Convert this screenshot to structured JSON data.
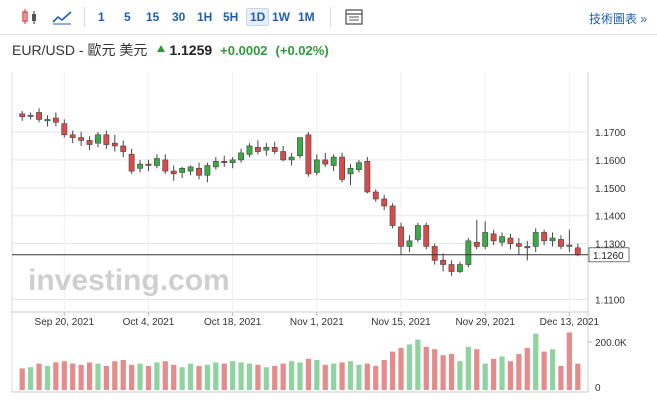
{
  "toolbar": {
    "icons": [
      "candlestick-icon",
      "line-chart-icon",
      "calendar-icon"
    ],
    "timeframes": [
      "1",
      "5",
      "15",
      "30",
      "1H",
      "5H",
      "1D",
      "1W",
      "1M"
    ],
    "active_timeframe": "1D",
    "tech_link": "技術圖表 »"
  },
  "header": {
    "symbol": "EUR/USD - 歐元 美元",
    "last": "1.1259",
    "change": "+0.0002",
    "change_pct": "(+0.02%)"
  },
  "colors": {
    "up": "#3aaa47",
    "down": "#d94b4b",
    "vol_up": "#8fd4a0",
    "vol_down": "#e58b8b",
    "grid": "#e6e6e6",
    "link": "#1f5fae"
  },
  "chart_data": {
    "type": "candlestick",
    "y_ticks": [
      "1.1700",
      "1.1600",
      "1.1500",
      "1.1400",
      "1.1300",
      "1.1100"
    ],
    "ylim": [
      1.1055,
      1.1915
    ],
    "last_price_label": "1.1260",
    "last_price": 1.126,
    "x_tick_labels": [
      "Sep 20, 2021",
      "Oct 4, 2021",
      "Oct 18, 2021",
      "Nov 1, 2021",
      "Nov 15, 2021",
      "Nov 29, 2021",
      "Dec 13, 2021"
    ],
    "x_tick_index": [
      5,
      15,
      25,
      35,
      45,
      55,
      65
    ],
    "candles": [
      [
        1.1765,
        1.1775,
        1.174,
        1.1755
      ],
      [
        1.176,
        1.177,
        1.1745,
        1.176
      ],
      [
        1.177,
        1.1785,
        1.1735,
        1.1745
      ],
      [
        1.174,
        1.176,
        1.172,
        1.1745
      ],
      [
        1.175,
        1.177,
        1.172,
        1.1735
      ],
      [
        1.173,
        1.1745,
        1.168,
        1.169
      ],
      [
        1.169,
        1.1705,
        1.166,
        1.168
      ],
      [
        1.168,
        1.17,
        1.165,
        1.167
      ],
      [
        1.167,
        1.1685,
        1.1635,
        1.1655
      ],
      [
        1.166,
        1.17,
        1.1645,
        1.169
      ],
      [
        1.169,
        1.1705,
        1.164,
        1.1655
      ],
      [
        1.166,
        1.169,
        1.163,
        1.165
      ],
      [
        1.165,
        1.167,
        1.161,
        1.163
      ],
      [
        1.162,
        1.164,
        1.155,
        1.156
      ],
      [
        1.157,
        1.16,
        1.1555,
        1.1585
      ],
      [
        1.1585,
        1.16,
        1.156,
        1.158
      ],
      [
        1.158,
        1.162,
        1.157,
        1.1605
      ],
      [
        1.16,
        1.162,
        1.155,
        1.156
      ],
      [
        1.156,
        1.158,
        1.1525,
        1.155
      ],
      [
        1.1555,
        1.1575,
        1.1535,
        1.157
      ],
      [
        1.156,
        1.158,
        1.1545,
        1.1575
      ],
      [
        1.157,
        1.159,
        1.153,
        1.1545
      ],
      [
        1.1545,
        1.159,
        1.152,
        1.158
      ],
      [
        1.1575,
        1.161,
        1.1565,
        1.1595
      ],
      [
        1.1595,
        1.1615,
        1.1575,
        1.159
      ],
      [
        1.159,
        1.161,
        1.157,
        1.16
      ],
      [
        1.16,
        1.164,
        1.159,
        1.1625
      ],
      [
        1.162,
        1.166,
        1.161,
        1.165
      ],
      [
        1.1645,
        1.167,
        1.162,
        1.163
      ],
      [
        1.1635,
        1.166,
        1.1615,
        1.1645
      ],
      [
        1.1645,
        1.1665,
        1.162,
        1.163
      ],
      [
        1.163,
        1.165,
        1.1595,
        1.16
      ],
      [
        1.16,
        1.1625,
        1.158,
        1.161
      ],
      [
        1.1615,
        1.168,
        1.1605,
        1.168
      ],
      [
        1.169,
        1.17,
        1.154,
        1.155
      ],
      [
        1.1555,
        1.162,
        1.1545,
        1.16
      ],
      [
        1.16,
        1.1625,
        1.1575,
        1.1585
      ],
      [
        1.158,
        1.162,
        1.156,
        1.161
      ],
      [
        1.161,
        1.1625,
        1.152,
        1.153
      ],
      [
        1.155,
        1.1585,
        1.151,
        1.157
      ],
      [
        1.1565,
        1.16,
        1.1555,
        1.159
      ],
      [
        1.1595,
        1.161,
        1.148,
        1.1485
      ],
      [
        1.1485,
        1.1495,
        1.145,
        1.146
      ],
      [
        1.146,
        1.1475,
        1.142,
        1.1435
      ],
      [
        1.1435,
        1.1445,
        1.1355,
        1.1365
      ],
      [
        1.136,
        1.1375,
        1.126,
        1.129
      ],
      [
        1.129,
        1.133,
        1.127,
        1.131
      ],
      [
        1.1315,
        1.1375,
        1.1305,
        1.1365
      ],
      [
        1.1365,
        1.1375,
        1.128,
        1.129
      ],
      [
        1.129,
        1.13,
        1.1225,
        1.124
      ],
      [
        1.124,
        1.1265,
        1.12,
        1.1225
      ],
      [
        1.1225,
        1.124,
        1.1185,
        1.12
      ],
      [
        1.12,
        1.1235,
        1.1195,
        1.1225
      ],
      [
        1.1225,
        1.132,
        1.1215,
        1.131
      ],
      [
        1.1305,
        1.1385,
        1.128,
        1.129
      ],
      [
        1.129,
        1.138,
        1.128,
        1.134
      ],
      [
        1.1335,
        1.135,
        1.1295,
        1.131
      ],
      [
        1.1305,
        1.134,
        1.129,
        1.1325
      ],
      [
        1.132,
        1.1335,
        1.128,
        1.13
      ],
      [
        1.13,
        1.132,
        1.126,
        1.129
      ],
      [
        1.129,
        1.131,
        1.124,
        1.1285
      ],
      [
        1.129,
        1.1355,
        1.127,
        1.134
      ],
      [
        1.134,
        1.135,
        1.1295,
        1.131
      ],
      [
        1.131,
        1.134,
        1.129,
        1.132
      ],
      [
        1.1315,
        1.133,
        1.128,
        1.129
      ],
      [
        1.1295,
        1.135,
        1.127,
        1.129
      ],
      [
        1.1285,
        1.13,
        1.1255,
        1.126
      ]
    ],
    "volume_axis_labels": [
      "200.0K",
      "0"
    ],
    "volume_max": 250000,
    "volumes": [
      90000,
      95000,
      110000,
      100000,
      115000,
      120000,
      110000,
      105000,
      115000,
      110000,
      100000,
      120000,
      125000,
      105000,
      110000,
      100000,
      115000,
      120000,
      105000,
      95000,
      110000,
      100000,
      105000,
      115000,
      110000,
      120000,
      115000,
      110000,
      105000,
      95000,
      100000,
      110000,
      120000,
      115000,
      130000,
      125000,
      105000,
      110000,
      115000,
      120000,
      105000,
      110000,
      100000,
      125000,
      160000,
      175000,
      190000,
      210000,
      180000,
      170000,
      145000,
      150000,
      120000,
      180000,
      170000,
      110000,
      130000,
      140000,
      120000,
      150000,
      175000,
      235000,
      160000,
      170000,
      100000,
      240000,
      110000
    ]
  },
  "watermark": "investing.com"
}
